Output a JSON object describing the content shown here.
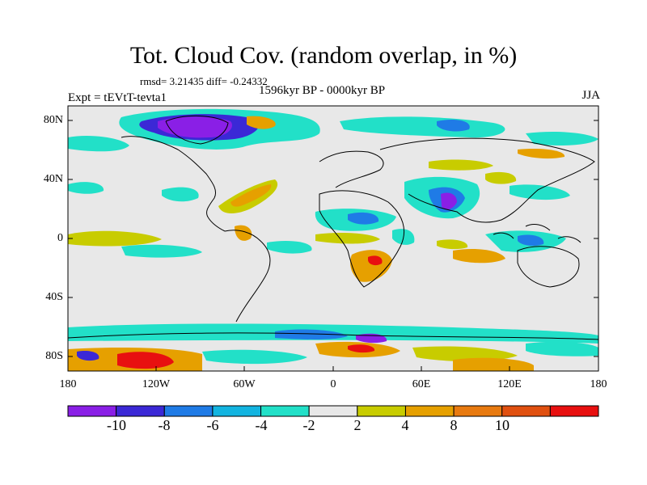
{
  "title": "Tot. Cloud Cov. (random overlap, in %)",
  "stats": "rmsd= 3.21435 diff= -0.24332",
  "period": "1596kyr BP - 0000kyr BP",
  "experiment": "Expt = tEVtT-tevta1",
  "season": "JJA",
  "lat_labels": [
    "80N",
    "40N",
    "0",
    "40S",
    "80S"
  ],
  "lon_labels": [
    "180",
    "120W",
    "60W",
    "0",
    "60E",
    "120E",
    "180"
  ],
  "colorbar": {
    "labels": [
      "-10",
      "-8",
      "-6",
      "-4",
      "-2",
      "2",
      "4",
      "8",
      "10"
    ],
    "colors": [
      "#8a1fe6",
      "#3b28d6",
      "#1f7be6",
      "#12b4e0",
      "#22e0c8",
      "#e8e8e8",
      "#c8cc00",
      "#e6a000",
      "#e87a10",
      "#e05010",
      "#e81010"
    ]
  },
  "background_color": "#e8e8e8"
}
